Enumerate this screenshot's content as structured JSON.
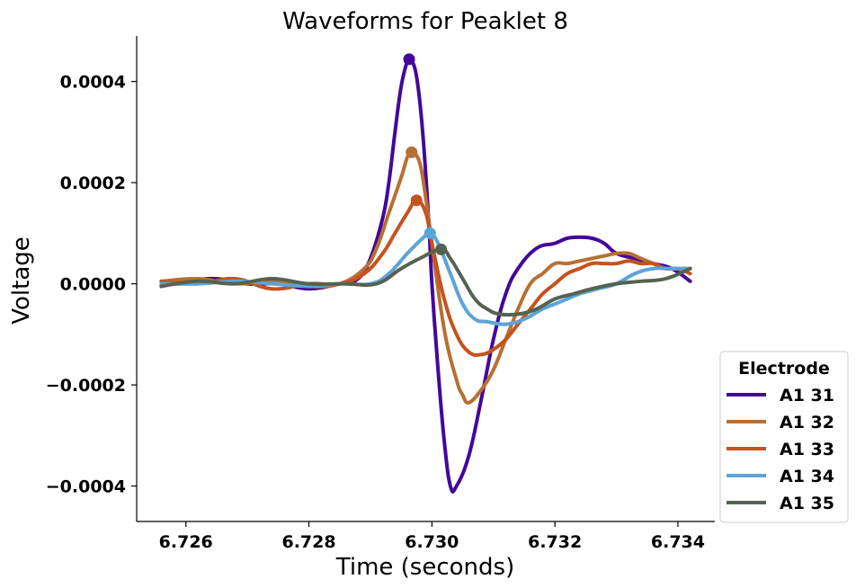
{
  "chart_data": {
    "type": "line",
    "title": "Waveforms for Peaklet 8",
    "xlabel": "Time (seconds)",
    "ylabel": "Voltage",
    "xlim": [
      6.7252,
      6.7346
    ],
    "ylim": [
      -0.00047,
      0.00049
    ],
    "xticks": [
      6.726,
      6.728,
      6.73,
      6.732,
      6.734
    ],
    "xtick_labels": [
      "6.726",
      "6.728",
      "6.730",
      "6.732",
      "6.734"
    ],
    "yticks": [
      0.0004,
      0.0002,
      0.0,
      -0.0002,
      -0.0004
    ],
    "ytick_labels": [
      "0.0004",
      "0.0002",
      "0.0000",
      "−0.0002",
      "−0.0004"
    ],
    "grid": false,
    "legend": {
      "title": "Electrode",
      "placement": "lower-right-outside"
    },
    "series": [
      {
        "name": "A1 31",
        "color": "#43089a",
        "peak": [
          6.72963,
          0.000444
        ],
        "x": [
          6.7256,
          6.726,
          6.7265,
          6.727,
          6.7275,
          6.728,
          6.7285,
          6.7288,
          6.729,
          6.7292,
          6.7293,
          6.7294,
          6.7295,
          6.7296,
          6.72965,
          6.72975,
          6.72985,
          6.72995,
          6.73,
          6.7301,
          6.7302,
          6.7303,
          6.7304,
          6.7306,
          6.7308,
          6.731,
          6.7312,
          6.7314,
          6.7317,
          6.732,
          6.7322,
          6.7324,
          6.7326,
          6.7328,
          6.733,
          6.7333,
          6.7336,
          6.7339,
          6.7342
        ],
        "y": [
          -5e-06,
          5e-06,
          1e-05,
          0.0,
          0.0,
          -1e-05,
          0.0,
          1e-05,
          5e-05,
          0.00013,
          0.0002,
          0.0003,
          0.00039,
          0.00044,
          0.000444,
          0.00041,
          0.0003,
          0.00012,
          0.0,
          -0.00017,
          -0.00031,
          -0.0004,
          -0.0004,
          -0.00034,
          -0.00023,
          -0.00011,
          -2e-05,
          3e-05,
          7e-05,
          8e-05,
          9e-05,
          9.2e-05,
          9e-05,
          8e-05,
          6e-05,
          5e-05,
          4e-05,
          3e-05,
          5e-06
        ]
      },
      {
        "name": "A1 32",
        "color": "#b86f32",
        "peak": [
          6.72967,
          0.00026
        ],
        "x": [
          6.7256,
          6.7262,
          6.7268,
          6.7274,
          6.728,
          6.7285,
          6.7289,
          6.7291,
          6.7293,
          6.7295,
          6.7296,
          6.72967,
          6.7298,
          6.7299,
          6.73,
          6.7302,
          6.7304,
          6.7305,
          6.7306,
          6.7308,
          6.731,
          6.7312,
          6.7314,
          6.7316,
          6.7318,
          6.732,
          6.7322,
          6.7324,
          6.7326,
          6.7328,
          6.733,
          6.7332,
          6.7334,
          6.7336,
          6.7338,
          6.734,
          6.7342
        ],
        "y": [
          5e-06,
          1e-05,
          0.0,
          5e-06,
          -5e-06,
          0.0,
          3e-05,
          7e-05,
          0.00014,
          0.00021,
          0.00025,
          0.00026,
          0.00024,
          0.00017,
          8e-05,
          -9e-05,
          -0.00019,
          -0.00022,
          -0.000235,
          -0.00021,
          -0.00017,
          -0.00011,
          -5e-05,
          0.0,
          2e-05,
          4e-05,
          4e-05,
          4.5e-05,
          5e-05,
          5.5e-05,
          6e-05,
          6e-05,
          5e-05,
          4e-05,
          3e-05,
          3e-05,
          3e-05
        ]
      },
      {
        "name": "A1 33",
        "color": "#c4531f",
        "peak": [
          6.72975,
          0.000165
        ],
        "x": [
          6.7256,
          6.7262,
          6.7268,
          6.7274,
          6.728,
          6.7285,
          6.7289,
          6.7292,
          6.7294,
          6.7296,
          6.72975,
          6.7299,
          6.73,
          6.7302,
          6.7304,
          6.7306,
          6.7308,
          6.731,
          6.7312,
          6.7314,
          6.7316,
          6.7318,
          6.732,
          6.7322,
          6.7324,
          6.7326,
          6.7328,
          6.733,
          6.7332,
          6.7334,
          6.7336,
          6.7338,
          6.734,
          6.7342
        ],
        "y": [
          5e-06,
          0.0,
          1e-05,
          -1e-05,
          0.0,
          0.0,
          2e-05,
          6e-05,
          0.0001,
          0.00014,
          0.000165,
          0.00014,
          8e-05,
          -3e-05,
          -0.0001,
          -0.000135,
          -0.00014,
          -0.00013,
          -0.00011,
          -8e-05,
          -5e-05,
          -2e-05,
          0.0,
          2e-05,
          3e-05,
          4e-05,
          4e-05,
          4e-05,
          4.5e-05,
          4e-05,
          4e-05,
          3e-05,
          3e-05,
          2e-05
        ]
      },
      {
        "name": "A1 34",
        "color": "#5ba4d8",
        "peak": [
          6.72997,
          0.0001
        ],
        "x": [
          6.7256,
          6.7262,
          6.7268,
          6.7274,
          6.728,
          6.7285,
          6.729,
          6.7293,
          6.7296,
          6.72985,
          6.72997,
          6.7301,
          6.7303,
          6.7305,
          6.7307,
          6.7309,
          6.7312,
          6.7315,
          6.7318,
          6.732,
          6.7322,
          6.7324,
          6.7327,
          6.733,
          6.7333,
          6.7336,
          6.7339,
          6.7342
        ],
        "y": [
          0.0,
          0.0,
          5e-06,
          0.0,
          -5e-06,
          0.0,
          0.0,
          2e-05,
          6e-05,
          9e-05,
          0.0001,
          8e-05,
          2e-05,
          -4e-05,
          -7e-05,
          -7.5e-05,
          -8e-05,
          -7e-05,
          -5e-05,
          -4e-05,
          -3e-05,
          -2e-05,
          -1e-05,
          0.0,
          2e-05,
          3e-05,
          3e-05,
          3e-05
        ]
      },
      {
        "name": "A1 35",
        "color": "#566250",
        "peak": [
          6.73015,
          6.8e-05
        ],
        "x": [
          6.7256,
          6.7262,
          6.7268,
          6.7274,
          6.728,
          6.7286,
          6.7291,
          6.7295,
          6.7298,
          6.73015,
          6.7303,
          6.7305,
          6.7307,
          6.7309,
          6.7311,
          6.7314,
          6.7317,
          6.732,
          6.7323,
          6.7326,
          6.733,
          6.7334,
          6.7338,
          6.7342
        ],
        "y": [
          -5e-06,
          5e-06,
          0.0,
          1e-05,
          0.0,
          0.0,
          0.0,
          3e-05,
          5e-05,
          6.8e-05,
          5e-05,
          1e-05,
          -3e-05,
          -5e-05,
          -6e-05,
          -6e-05,
          -5e-05,
          -3e-05,
          -2e-05,
          -1e-05,
          0.0,
          5e-06,
          1e-05,
          3e-05
        ]
      }
    ]
  }
}
